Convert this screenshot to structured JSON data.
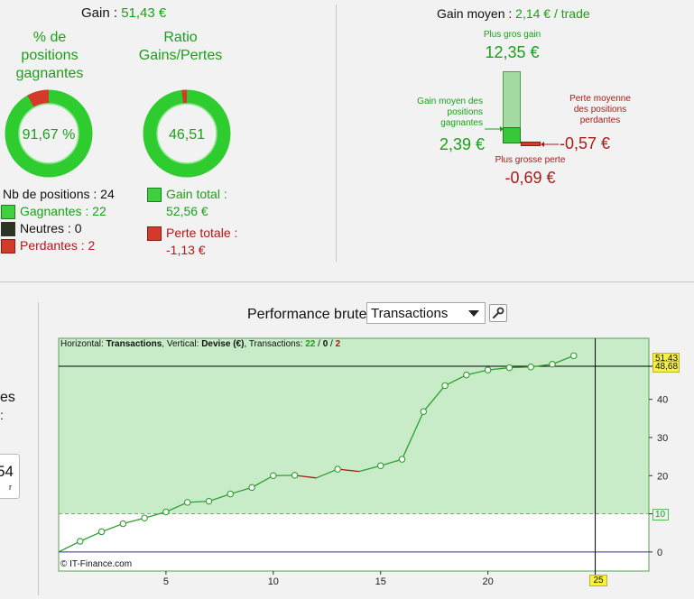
{
  "summary": {
    "gain_label": "Gain :",
    "gain_value": "51,43 €",
    "pct_title": "% de\npositions\ngagnantes",
    "pct_value": "91,67 %",
    "pct_win_fraction": 0.9167,
    "ratio_title": "Ratio\nGains/Pertes",
    "ratio_value": "46,51",
    "ratio_win_fraction": 0.979,
    "nb_positions": "Nb de positions : 24",
    "gagnantes": "Gagnantes : 22",
    "neutres": "Neutres : 0",
    "perdantes": "Perdantes : 2",
    "gain_total_label": "Gain total :",
    "gain_total_value": "52,56 €",
    "perte_totale_label": "Perte totale :",
    "perte_totale_value": "-1,13 €"
  },
  "gain_moyen": {
    "label": "Gain moyen :",
    "value": "2,14 € / trade",
    "plus_gros_gain_label": "Plus gros gain",
    "plus_gros_gain_value": "12,35 €",
    "gain_moyen_pos_label": "Gain moyen des\npositions\ngagnantes",
    "gain_moyen_pos_value": "2,39 €",
    "perte_moy_label": "Perte moyenne\ndes positions\nperdantes",
    "perte_moy_value": "-0,57 €",
    "plus_grosse_perte_label": "Plus grosse perte",
    "plus_grosse_perte_value": "-0,69 €"
  },
  "left_fragment": {
    "text1": "es",
    "text2": ":",
    "box_value": "54",
    "box_sub": "r"
  },
  "perf": {
    "title": "Performance brute",
    "dropdown_value": "Transactions",
    "info_h": "Horizontal: ",
    "info_h_val": "Transactions",
    "info_v": ", Vertical: ",
    "info_v_val": "Devise (€)",
    "info_t": ", Transactions: ",
    "info_win": "22",
    "info_sep1": " / ",
    "info_neutral": "0",
    "info_sep2": " / ",
    "info_loss": "2",
    "copyright": "© IT-Finance.com",
    "cursor_y_label": "48,68",
    "last_value_label": "51,43",
    "threshold_label": "10",
    "cursor_x_label": "25"
  },
  "chart_data": {
    "type": "line",
    "x": [
      0,
      1,
      2,
      3,
      4,
      5,
      6,
      7,
      8,
      9,
      10,
      11,
      12,
      13,
      14,
      15,
      16,
      17,
      18,
      19,
      20,
      21,
      22,
      23,
      24
    ],
    "values": [
      0,
      2.8,
      5.3,
      7.4,
      8.9,
      10.5,
      13.0,
      13.3,
      15.2,
      16.9,
      20.0,
      20.1,
      19.4,
      21.7,
      21.1,
      22.6,
      24.3,
      36.8,
      43.6,
      46.4,
      47.7,
      48.3,
      48.5,
      49.2,
      51.43
    ],
    "loss_transactions": [
      12,
      14
    ],
    "xlim": [
      0,
      27.5
    ],
    "ylim": [
      -5,
      56
    ],
    "xticks": [
      5,
      10,
      15,
      20
    ],
    "yticks": [
      0,
      10,
      20,
      30,
      40
    ],
    "threshold": 10,
    "cursor_x": 25,
    "cursor_y": 48.68,
    "grid": false,
    "colors": {
      "area": "#c8ecc8",
      "line_gain": "#2f9e2f",
      "line_loss": "#b01818",
      "zero_line": "#2b2b9c",
      "threshold": "#58c058"
    }
  }
}
